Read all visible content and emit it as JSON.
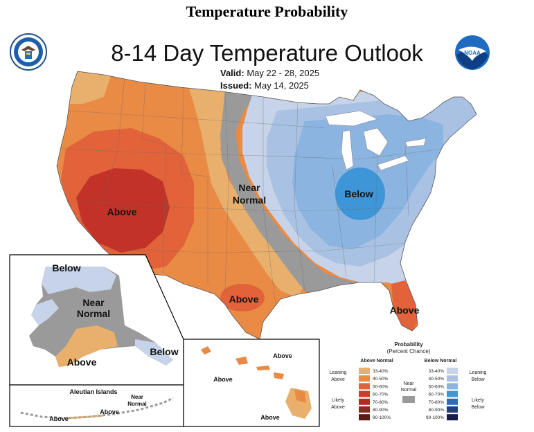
{
  "header": {
    "page_title": "Temperature Probability",
    "map_title": "8-14 Day Temperature Outlook",
    "valid_label": "Valid:",
    "valid_dates": "May 22 - 28, 2025",
    "issued_label": "Issued:",
    "issued_date": "May 14, 2025"
  },
  "logos": {
    "left": "seal-icon",
    "right": "noaa-logo-icon"
  },
  "map_labels": {
    "conus_above_west": "Above",
    "conus_near": "Near",
    "conus_normal": "Normal",
    "conus_below": "Below",
    "conus_above_texas": "Above",
    "conus_above_florida": "Above",
    "alaska_below_north": "Below",
    "alaska_near": "Near",
    "alaska_normal": "Normal",
    "alaska_above": "Above",
    "alaska_below_panhandle": "Below",
    "aleutian_title": "Aleutian Islands",
    "aleutian_near": "Near",
    "aleutian_normal": "Normal",
    "aleutian_above_1": "Above",
    "aleutian_above_2": "Above",
    "hawaii_above_1": "Above",
    "hawaii_above_2": "Above",
    "hawaii_above_3": "Above"
  },
  "legend": {
    "title_1": "Probability",
    "title_2": "(Percent Chance)",
    "above_header": "Above Normal",
    "below_header": "Below Normal",
    "leaning_above_1": "Leaning",
    "leaning_above_2": "Above",
    "likely_above_1": "Likely",
    "likely_above_2": "Above",
    "leaning_below_1": "Leaning",
    "leaning_below_2": "Below",
    "likely_below_1": "Likely",
    "likely_below_2": "Below",
    "near_1": "Near",
    "near_2": "Normal",
    "ranges": [
      "33-40%",
      "40-50%",
      "50-60%",
      "60-70%",
      "70-80%",
      "80-90%",
      "90-100%"
    ],
    "above_colors": [
      "#E8B06C",
      "#E98A45",
      "#E2623A",
      "#D23B2A",
      "#B52A22",
      "#8A2A1E",
      "#5C1A14"
    ],
    "below_colors": [
      "#C7D3E8",
      "#A9C2E3",
      "#8CB4E0",
      "#3E95D8",
      "#2A6FB6",
      "#1F3F80",
      "#141C4C"
    ],
    "near_color": "#9A9A9A"
  }
}
